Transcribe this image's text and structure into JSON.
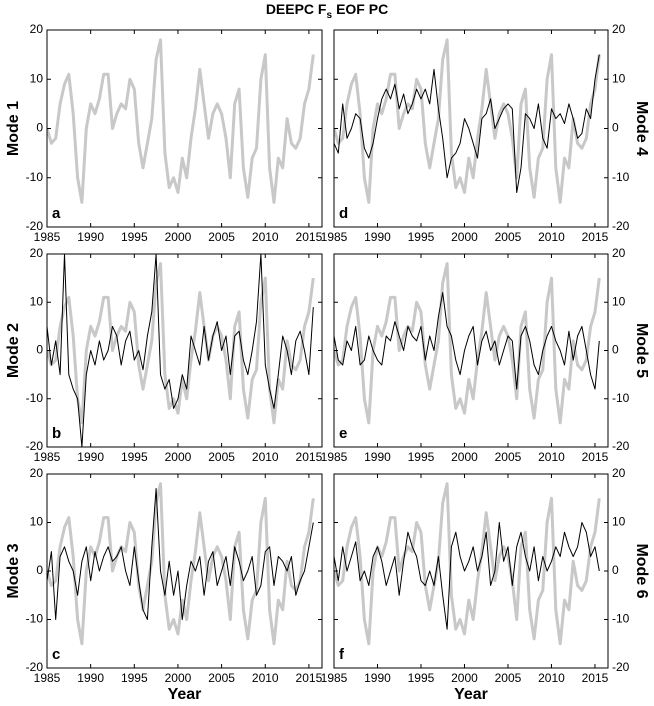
{
  "title": [
    "DEEPC F",
    "s",
    "EOF PC"
  ],
  "chart_data": [
    {
      "type": "line",
      "ylabel": "Mode 1",
      "label": "a",
      "x": [
        1985,
        1985.5,
        1986,
        1986.5,
        1987,
        1987.5,
        1988,
        1988.5,
        1989,
        1989.5,
        1990,
        1990.5,
        1991,
        1991.5,
        1992,
        1992.5,
        1993,
        1993.5,
        1994,
        1994.5,
        1995,
        1995.5,
        1996,
        1996.5,
        1997,
        1997.5,
        1998,
        1998.5,
        1999,
        1999.5,
        2000,
        2000.5,
        2001,
        2001.5,
        2002,
        2002.5,
        2003,
        2003.5,
        2004,
        2004.5,
        2005,
        2005.5,
        2006,
        2006.5,
        2007,
        2007.5,
        2008,
        2008.5,
        2009,
        2009.5,
        2010,
        2010.5,
        2011,
        2011.5,
        2012,
        2012.5,
        2013,
        2013.5,
        2014,
        2014.5,
        2015,
        2015.5
      ],
      "series": [
        {
          "color": "#c8c8c8",
          "values": [
            0,
            -3,
            -2,
            5,
            9,
            11,
            3,
            -10,
            -15,
            0,
            5,
            3,
            6,
            11,
            11,
            0,
            3,
            5,
            4,
            10,
            8,
            -3,
            -8,
            -3,
            2,
            14,
            18,
            -5,
            -12,
            -10,
            -13,
            -6,
            -10,
            -2,
            4,
            12,
            5,
            -2,
            3,
            5,
            3,
            -2,
            -10,
            5,
            8,
            -8,
            -14,
            -6,
            -4,
            10,
            15,
            -8,
            -15,
            -6,
            -8,
            2,
            -3,
            -4,
            -2,
            5,
            8,
            15
          ]
        }
      ],
      "xlim": [
        1985,
        2016.5
      ],
      "xticks": [
        1985,
        1990,
        1995,
        2000,
        2005,
        2010,
        2015
      ],
      "ylim": [
        -20,
        20
      ],
      "yticks": [
        -20,
        -10,
        0,
        10,
        20
      ]
    },
    {
      "type": "line",
      "ylabel": "Mode 2",
      "label": "b",
      "x": [
        1985,
        1985.5,
        1986,
        1986.5,
        1987,
        1987.5,
        1988,
        1988.5,
        1989,
        1989.5,
        1990,
        1990.5,
        1991,
        1991.5,
        1992,
        1992.5,
        1993,
        1993.5,
        1994,
        1994.5,
        1995,
        1995.5,
        1996,
        1996.5,
        1997,
        1997.5,
        1998,
        1998.5,
        1999,
        1999.5,
        2000,
        2000.5,
        2001,
        2001.5,
        2002,
        2002.5,
        2003,
        2003.5,
        2004,
        2004.5,
        2005,
        2005.5,
        2006,
        2006.5,
        2007,
        2007.5,
        2008,
        2008.5,
        2009,
        2009.5,
        2010,
        2010.5,
        2011,
        2011.5,
        2012,
        2012.5,
        2013,
        2013.5,
        2014,
        2014.5,
        2015,
        2015.5
      ],
      "series": [
        {
          "color": "#c8c8c8",
          "values": [
            0,
            -3,
            -2,
            5,
            9,
            11,
            3,
            -10,
            -15,
            0,
            5,
            3,
            6,
            11,
            11,
            0,
            3,
            5,
            4,
            10,
            8,
            -3,
            -8,
            -3,
            2,
            14,
            18,
            -5,
            -12,
            -10,
            -13,
            -6,
            -10,
            -2,
            4,
            12,
            5,
            -2,
            3,
            5,
            3,
            -2,
            -10,
            5,
            8,
            -8,
            -14,
            -6,
            -4,
            10,
            15,
            -8,
            -15,
            -6,
            -8,
            2,
            -3,
            -4,
            -2,
            5,
            8,
            15
          ]
        },
        {
          "color": "#000000",
          "values": [
            5,
            -3,
            2,
            -5,
            20,
            -5,
            -8,
            -10,
            -20,
            -5,
            0,
            -3,
            2,
            -2,
            0,
            5,
            3,
            -3,
            2,
            4,
            -2,
            0,
            -4,
            3,
            8,
            20,
            -5,
            -8,
            -6,
            -12,
            -10,
            -5,
            -8,
            3,
            0,
            -3,
            5,
            -2,
            3,
            6,
            0,
            3,
            -5,
            3,
            4,
            -2,
            -5,
            0,
            6,
            20,
            -3,
            -8,
            -12,
            -5,
            3,
            0,
            -5,
            2,
            4,
            0,
            -5,
            9
          ]
        }
      ],
      "xlim": [
        1985,
        2016.5
      ],
      "xticks": [
        1985,
        1990,
        1995,
        2000,
        2005,
        2010,
        2015
      ],
      "ylim": [
        -20,
        20
      ],
      "yticks": [
        -20,
        -10,
        0,
        10,
        20
      ]
    },
    {
      "type": "line",
      "ylabel": "Mode 3",
      "label": "c",
      "xlabel": "Year",
      "x": [
        1985,
        1985.5,
        1986,
        1986.5,
        1987,
        1987.5,
        1988,
        1988.5,
        1989,
        1989.5,
        1990,
        1990.5,
        1991,
        1991.5,
        1992,
        1992.5,
        1993,
        1993.5,
        1994,
        1994.5,
        1995,
        1995.5,
        1996,
        1996.5,
        1997,
        1997.5,
        1998,
        1998.5,
        1999,
        1999.5,
        2000,
        2000.5,
        2001,
        2001.5,
        2002,
        2002.5,
        2003,
        2003.5,
        2004,
        2004.5,
        2005,
        2005.5,
        2006,
        2006.5,
        2007,
        2007.5,
        2008,
        2008.5,
        2009,
        2009.5,
        2010,
        2010.5,
        2011,
        2011.5,
        2012,
        2012.5,
        2013,
        2013.5,
        2014,
        2014.5,
        2015,
        2015.5
      ],
      "series": [
        {
          "color": "#c8c8c8",
          "values": [
            0,
            -3,
            -2,
            5,
            9,
            11,
            3,
            -10,
            -15,
            0,
            5,
            3,
            6,
            11,
            11,
            0,
            3,
            5,
            4,
            10,
            8,
            -3,
            -8,
            -3,
            2,
            14,
            18,
            -5,
            -12,
            -10,
            -13,
            -6,
            -10,
            -2,
            4,
            12,
            5,
            -2,
            3,
            5,
            3,
            -2,
            -10,
            5,
            8,
            -8,
            -14,
            -6,
            -4,
            10,
            15,
            -8,
            -15,
            -6,
            -8,
            2,
            -3,
            -4,
            -2,
            5,
            8,
            15
          ]
        },
        {
          "color": "#000000",
          "values": [
            -2,
            4,
            -10,
            3,
            5,
            2,
            0,
            -5,
            2,
            5,
            -2,
            4,
            0,
            3,
            5,
            2,
            3,
            5,
            0,
            -3,
            5,
            -2,
            -8,
            -10,
            5,
            17,
            0,
            -5,
            2,
            -5,
            0,
            -10,
            -3,
            2,
            0,
            3,
            -5,
            2,
            4,
            -3,
            0,
            3,
            -3,
            5,
            2,
            -2,
            0,
            3,
            -5,
            -3,
            4,
            5,
            -3,
            3,
            2,
            0,
            3,
            -5,
            -2,
            0,
            5,
            10
          ]
        }
      ],
      "xlim": [
        1985,
        2016.5
      ],
      "xticks": [
        1985,
        1990,
        1995,
        2000,
        2005,
        2010,
        2015
      ],
      "ylim": [
        -20,
        20
      ],
      "yticks": [
        -20,
        -10,
        0,
        10,
        20
      ]
    },
    {
      "type": "line",
      "ylabel": "Mode 4",
      "label": "d",
      "x": [
        1985,
        1985.5,
        1986,
        1986.5,
        1987,
        1987.5,
        1988,
        1988.5,
        1989,
        1989.5,
        1990,
        1990.5,
        1991,
        1991.5,
        1992,
        1992.5,
        1993,
        1993.5,
        1994,
        1994.5,
        1995,
        1995.5,
        1996,
        1996.5,
        1997,
        1997.5,
        1998,
        1998.5,
        1999,
        1999.5,
        2000,
        2000.5,
        2001,
        2001.5,
        2002,
        2002.5,
        2003,
        2003.5,
        2004,
        2004.5,
        2005,
        2005.5,
        2006,
        2006.5,
        2007,
        2007.5,
        2008,
        2008.5,
        2009,
        2009.5,
        2010,
        2010.5,
        2011,
        2011.5,
        2012,
        2012.5,
        2013,
        2013.5,
        2014,
        2014.5,
        2015,
        2015.5
      ],
      "series": [
        {
          "color": "#c8c8c8",
          "values": [
            0,
            -3,
            -2,
            5,
            9,
            11,
            3,
            -10,
            -15,
            0,
            5,
            3,
            6,
            11,
            11,
            0,
            3,
            5,
            4,
            10,
            8,
            -3,
            -8,
            -3,
            2,
            14,
            18,
            -5,
            -12,
            -10,
            -13,
            -6,
            -10,
            -2,
            4,
            12,
            5,
            -2,
            3,
            5,
            3,
            -2,
            -10,
            5,
            8,
            -8,
            -14,
            -6,
            -4,
            10,
            15,
            -8,
            -15,
            -6,
            -8,
            2,
            -3,
            -4,
            -2,
            5,
            8,
            15
          ]
        },
        {
          "color": "#000000",
          "values": [
            -3,
            -5,
            5,
            -2,
            0,
            3,
            2,
            -4,
            -6,
            -3,
            2,
            6,
            8,
            6,
            9,
            4,
            7,
            3,
            5,
            8,
            6,
            8,
            5,
            12,
            4,
            -2,
            -10,
            -6,
            -5,
            -3,
            2,
            0,
            -3,
            -6,
            2,
            3,
            6,
            0,
            2,
            4,
            5,
            4,
            -13,
            -8,
            3,
            2,
            0,
            5,
            -2,
            -4,
            4,
            2,
            3,
            1,
            5,
            2,
            -2,
            -1,
            4,
            2,
            10,
            15
          ]
        }
      ],
      "xlim": [
        1985,
        2016.5
      ],
      "xticks": [
        1985,
        1990,
        1995,
        2000,
        2005,
        2010,
        2015
      ],
      "ylim": [
        -20,
        20
      ],
      "yticks": [
        -20,
        -10,
        0,
        10,
        20
      ]
    },
    {
      "type": "line",
      "ylabel": "Mode 5",
      "label": "e",
      "x": [
        1985,
        1985.5,
        1986,
        1986.5,
        1987,
        1987.5,
        1988,
        1988.5,
        1989,
        1989.5,
        1990,
        1990.5,
        1991,
        1991.5,
        1992,
        1992.5,
        1993,
        1993.5,
        1994,
        1994.5,
        1995,
        1995.5,
        1996,
        1996.5,
        1997,
        1997.5,
        1998,
        1998.5,
        1999,
        1999.5,
        2000,
        2000.5,
        2001,
        2001.5,
        2002,
        2002.5,
        2003,
        2003.5,
        2004,
        2004.5,
        2005,
        2005.5,
        2006,
        2006.5,
        2007,
        2007.5,
        2008,
        2008.5,
        2009,
        2009.5,
        2010,
        2010.5,
        2011,
        2011.5,
        2012,
        2012.5,
        2013,
        2013.5,
        2014,
        2014.5,
        2015,
        2015.5
      ],
      "series": [
        {
          "color": "#c8c8c8",
          "values": [
            0,
            -3,
            -2,
            5,
            9,
            11,
            3,
            -10,
            -15,
            0,
            5,
            3,
            6,
            11,
            11,
            0,
            3,
            5,
            4,
            10,
            8,
            -3,
            -8,
            -3,
            2,
            14,
            18,
            -5,
            -12,
            -10,
            -13,
            -6,
            -10,
            -2,
            4,
            12,
            5,
            -2,
            3,
            5,
            3,
            -2,
            -10,
            5,
            8,
            -8,
            -14,
            -6,
            -4,
            10,
            15,
            -8,
            -15,
            -6,
            -8,
            2,
            -3,
            -4,
            -2,
            5,
            8,
            15
          ]
        },
        {
          "color": "#000000",
          "values": [
            3,
            -2,
            -3,
            2,
            0,
            5,
            -3,
            -2,
            3,
            0,
            -2,
            -3,
            3,
            2,
            6,
            3,
            0,
            5,
            3,
            2,
            5,
            -2,
            3,
            0,
            7,
            12,
            5,
            3,
            -2,
            -5,
            0,
            3,
            5,
            -3,
            2,
            4,
            0,
            2,
            -3,
            0,
            3,
            2,
            -8,
            3,
            5,
            2,
            -3,
            -5,
            0,
            3,
            5,
            2,
            0,
            -3,
            4,
            -2,
            3,
            5,
            0,
            -5,
            -8,
            2
          ]
        }
      ],
      "xlim": [
        1985,
        2016.5
      ],
      "xticks": [
        1985,
        1990,
        1995,
        2000,
        2005,
        2010,
        2015
      ],
      "ylim": [
        -20,
        20
      ],
      "yticks": [
        -20,
        -10,
        0,
        10,
        20
      ]
    },
    {
      "type": "line",
      "ylabel": "Mode 6",
      "label": "f",
      "xlabel": "Year",
      "x": [
        1985,
        1985.5,
        1986,
        1986.5,
        1987,
        1987.5,
        1988,
        1988.5,
        1989,
        1989.5,
        1990,
        1990.5,
        1991,
        1991.5,
        1992,
        1992.5,
        1993,
        1993.5,
        1994,
        1994.5,
        1995,
        1995.5,
        1996,
        1996.5,
        1997,
        1997.5,
        1998,
        1998.5,
        1999,
        1999.5,
        2000,
        2000.5,
        2001,
        2001.5,
        2002,
        2002.5,
        2003,
        2003.5,
        2004,
        2004.5,
        2005,
        2005.5,
        2006,
        2006.5,
        2007,
        2007.5,
        2008,
        2008.5,
        2009,
        2009.5,
        2010,
        2010.5,
        2011,
        2011.5,
        2012,
        2012.5,
        2013,
        2013.5,
        2014,
        2014.5,
        2015,
        2015.5
      ],
      "series": [
        {
          "color": "#c8c8c8",
          "values": [
            0,
            -3,
            -2,
            5,
            9,
            11,
            3,
            -10,
            -15,
            0,
            5,
            3,
            6,
            11,
            11,
            0,
            3,
            5,
            4,
            10,
            8,
            -3,
            -8,
            -3,
            2,
            14,
            18,
            -5,
            -12,
            -10,
            -13,
            -6,
            -10,
            -2,
            4,
            12,
            5,
            -2,
            3,
            5,
            3,
            -2,
            -10,
            5,
            8,
            -8,
            -14,
            -6,
            -4,
            10,
            15,
            -8,
            -15,
            -6,
            -8,
            2,
            -3,
            -4,
            -2,
            5,
            8,
            15
          ]
        },
        {
          "color": "#000000",
          "values": [
            3,
            -2,
            5,
            0,
            3,
            6,
            -2,
            0,
            -3,
            3,
            5,
            2,
            -3,
            0,
            3,
            -5,
            2,
            8,
            5,
            3,
            -2,
            -3,
            0,
            -3,
            3,
            -5,
            -12,
            5,
            8,
            3,
            0,
            2,
            5,
            0,
            3,
            8,
            -3,
            0,
            10,
            2,
            5,
            -3,
            5,
            8,
            3,
            0,
            5,
            -2,
            3,
            0,
            2,
            5,
            3,
            8,
            5,
            3,
            5,
            10,
            8,
            3,
            5,
            0
          ]
        }
      ],
      "xlim": [
        1985,
        2016.5
      ],
      "xticks": [
        1985,
        1990,
        1995,
        2000,
        2005,
        2010,
        2015
      ],
      "ylim": [
        -20,
        20
      ],
      "yticks": [
        -20,
        -10,
        0,
        10,
        20
      ]
    }
  ]
}
